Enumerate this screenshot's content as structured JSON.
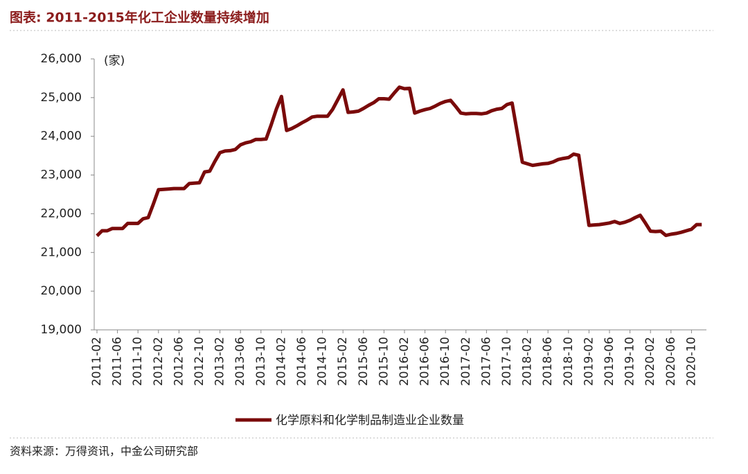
{
  "chart_data": {
    "type": "line",
    "title": "图表: 2011-2015年化工企业数量持续增加",
    "unit_label": "(家)",
    "source": "资料来源：万得资讯，中金公司研究部",
    "categories": [
      "2011-02",
      null,
      null,
      null,
      "2011-06",
      null,
      null,
      null,
      "2011-10",
      null,
      null,
      null,
      "2012-02",
      null,
      null,
      null,
      "2012-06",
      null,
      null,
      null,
      "2012-10",
      null,
      null,
      null,
      "2013-02",
      null,
      null,
      null,
      "2013-06",
      null,
      null,
      null,
      "2013-10",
      null,
      null,
      null,
      "2014-02",
      null,
      null,
      null,
      "2014-06",
      null,
      null,
      null,
      "2014-10",
      null,
      null,
      null,
      "2015-02",
      null,
      null,
      null,
      "2015-06",
      null,
      null,
      null,
      "2015-10",
      null,
      null,
      null,
      "2016-02",
      null,
      null,
      null,
      "2016-06",
      null,
      null,
      null,
      "2016-10",
      null,
      null,
      null,
      "2017-02",
      null,
      null,
      null,
      "2017-06",
      null,
      null,
      null,
      "2017-10",
      null,
      null,
      null,
      "2018-02",
      null,
      null,
      null,
      "2018-06",
      null,
      null,
      null,
      "2018-10",
      null,
      null,
      null,
      "2019-02",
      null,
      null,
      null,
      "2019-06",
      null,
      null,
      null,
      "2019-10",
      null,
      null,
      null,
      "2020-02",
      null,
      null,
      null,
      "2020-06",
      null,
      null,
      null,
      "2020-10",
      null,
      null
    ],
    "series": [
      {
        "name": "化学原料和化学制品制造业企业数量",
        "color": "#7a0a0a",
        "values": [
          21430,
          21560,
          21560,
          21620,
          21620,
          21620,
          21750,
          21750,
          21750,
          21870,
          21900,
          22250,
          22620,
          22630,
          22640,
          22650,
          22650,
          22650,
          22780,
          22790,
          22800,
          23080,
          23100,
          23350,
          23580,
          23620,
          23630,
          23660,
          23780,
          23830,
          23860,
          23920,
          23920,
          23930,
          24300,
          24700,
          25030,
          24150,
          24200,
          24270,
          24350,
          24420,
          24500,
          24520,
          24520,
          24520,
          24700,
          24950,
          25200,
          24620,
          24630,
          24650,
          24720,
          24800,
          24870,
          24970,
          24970,
          24960,
          25120,
          25270,
          25230,
          25240,
          24600,
          24650,
          24690,
          24720,
          24780,
          24850,
          24900,
          24930,
          24770,
          24600,
          24580,
          24590,
          24590,
          24580,
          24600,
          24660,
          24700,
          24720,
          24820,
          24860,
          24100,
          23330,
          23290,
          23250,
          23270,
          23290,
          23300,
          23340,
          23400,
          23430,
          23450,
          23540,
          23510,
          22600,
          21700,
          21710,
          21720,
          21740,
          21760,
          21800,
          21750,
          21780,
          21830,
          21900,
          21960,
          21760,
          21550,
          21540,
          21550,
          21440,
          21470,
          21490,
          21520,
          21560,
          21600,
          21720,
          21720
        ]
      }
    ],
    "ylim": [
      19000,
      26000
    ],
    "yticks": [
      {
        "value": 19000,
        "label": "19,000"
      },
      {
        "value": 20000,
        "label": "20,000"
      },
      {
        "value": 21000,
        "label": "21,000"
      },
      {
        "value": 22000,
        "label": "22,000"
      },
      {
        "value": 23000,
        "label": "23,000"
      },
      {
        "value": 24000,
        "label": "24,000"
      },
      {
        "value": 25000,
        "label": "25,000"
      },
      {
        "value": 26000,
        "label": "26,000"
      }
    ],
    "grid": false
  }
}
